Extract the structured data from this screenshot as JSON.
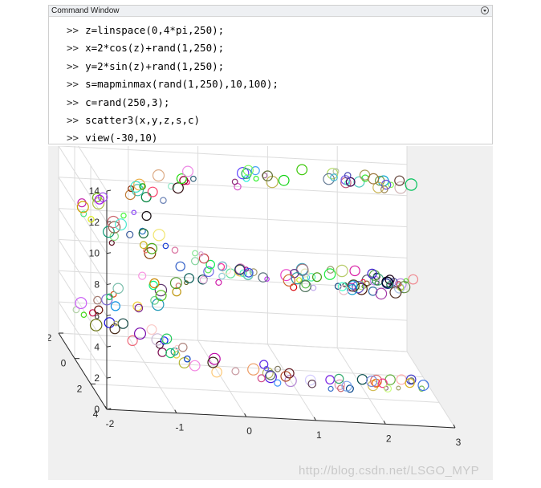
{
  "command_window": {
    "title": "Command Window",
    "prompt": ">>",
    "lines": [
      "z=linspace(0,4*pi,250);",
      "x=2*cos(z)+rand(1,250);",
      "y=2*sin(z)+rand(1,250);",
      "s=mapminmax(rand(1,250),10,100);",
      "c=rand(250,3);",
      "scatter3(x,y,z,s,c)",
      "view(-30,10)"
    ]
  },
  "chart_data": {
    "type": "scatter",
    "view": [
      -30,
      10
    ],
    "point_count": 250,
    "grid": true,
    "z_ticks": [
      "0",
      "2",
      "4",
      "6",
      "8",
      "10",
      "12",
      "14"
    ],
    "y_ticks": [
      "-2",
      "0",
      "2",
      "4"
    ],
    "x_ticks": [
      "-2",
      "-1",
      "0",
      "1",
      "2",
      "3"
    ],
    "xlim": [
      -2,
      3
    ],
    "ylim": [
      -2,
      4
    ],
    "zlim": [
      0,
      14
    ]
  },
  "watermark": "http://blog.csdn.net/LSGO_MYP"
}
